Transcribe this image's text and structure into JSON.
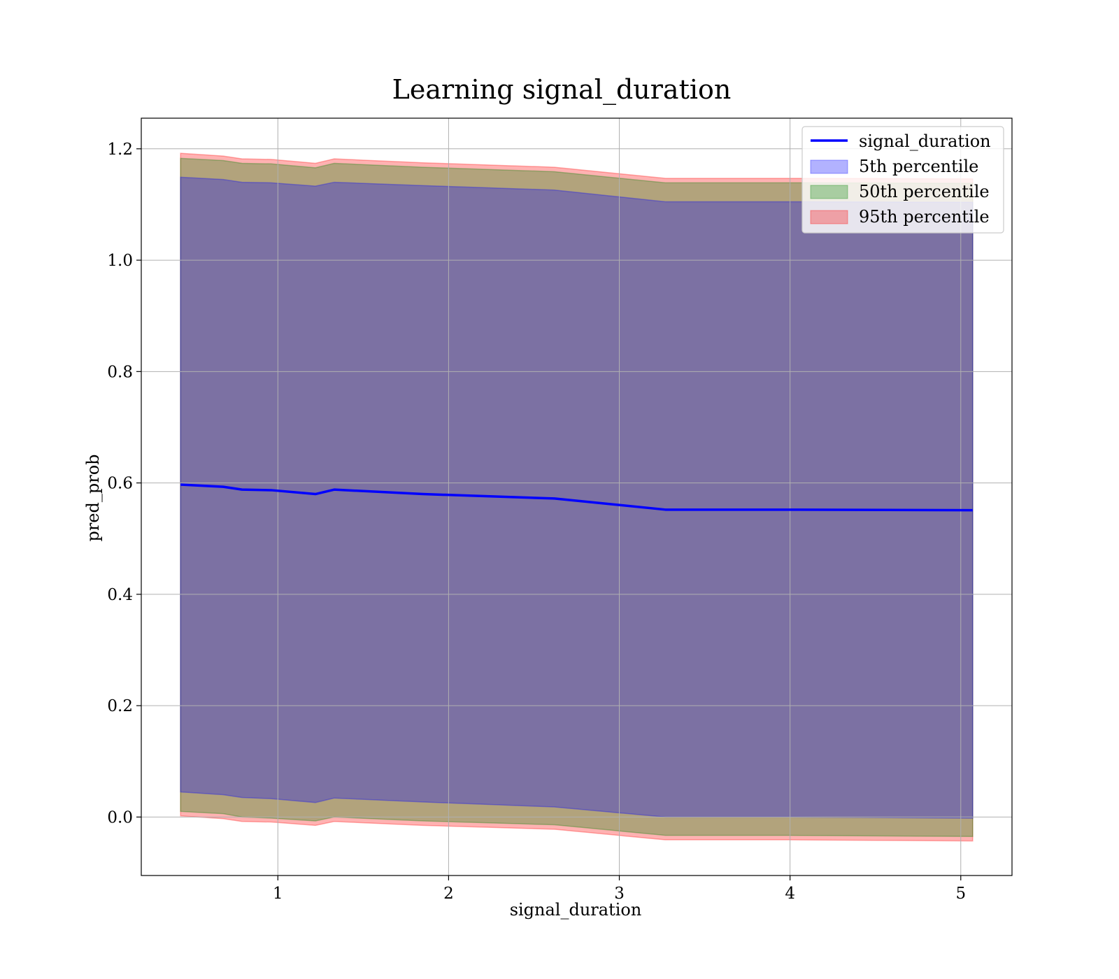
{
  "chart_data": {
    "type": "area",
    "title": "Learning signal_duration",
    "xlabel": "signal_duration",
    "ylabel": "pred_prob",
    "xlim": [
      0.2,
      5.3
    ],
    "ylim": [
      -0.105,
      1.255
    ],
    "xticks": [
      1,
      2,
      3,
      4,
      5
    ],
    "xtick_labels": [
      "1",
      "2",
      "3",
      "4",
      "5"
    ],
    "yticks": [
      0.0,
      0.2,
      0.4,
      0.6,
      0.8,
      1.0,
      1.2
    ],
    "ytick_labels": [
      "0.0",
      "0.2",
      "0.4",
      "0.6",
      "0.8",
      "1.0",
      "1.2"
    ],
    "grid": true,
    "legend_position": "top-right",
    "legend": [
      "signal_duration",
      "5th percentile",
      "50th percentile",
      "95th percentile"
    ],
    "x": [
      0.43,
      0.68,
      0.79,
      0.96,
      1.22,
      1.33,
      1.85,
      2.62,
      3.27,
      4.0,
      5.07
    ],
    "series": [
      {
        "name": "signal_duration",
        "kind": "line",
        "color": "#0000ff",
        "values": [
          0.597,
          0.593,
          0.588,
          0.587,
          0.58,
          0.588,
          0.58,
          0.572,
          0.552,
          0.552,
          0.551
        ]
      },
      {
        "name": "5th percentile",
        "kind": "band",
        "color": "#0000ff",
        "lower": [
          0.045,
          0.04,
          0.035,
          0.033,
          0.026,
          0.034,
          0.027,
          0.018,
          0.0,
          0.0,
          -0.002
        ],
        "upper": [
          1.149,
          1.145,
          1.14,
          1.139,
          1.133,
          1.14,
          1.134,
          1.126,
          1.105,
          1.105,
          1.104
        ]
      },
      {
        "name": "50th percentile",
        "kind": "band",
        "color": "#008000",
        "lower": [
          0.01,
          0.006,
          0.0,
          -0.002,
          -0.007,
          0.0,
          -0.007,
          -0.014,
          -0.033,
          -0.033,
          -0.035
        ],
        "upper": [
          1.183,
          1.179,
          1.174,
          1.173,
          1.166,
          1.174,
          1.167,
          1.159,
          1.139,
          1.139,
          1.138
        ]
      },
      {
        "name": "95th percentile",
        "kind": "band",
        "color": "#ff0000",
        "lower": [
          0.002,
          -0.003,
          -0.008,
          -0.009,
          -0.015,
          -0.008,
          -0.015,
          -0.022,
          -0.041,
          -0.041,
          -0.043
        ],
        "upper": [
          1.192,
          1.187,
          1.182,
          1.181,
          1.174,
          1.182,
          1.175,
          1.167,
          1.147,
          1.147,
          1.146
        ]
      }
    ]
  }
}
